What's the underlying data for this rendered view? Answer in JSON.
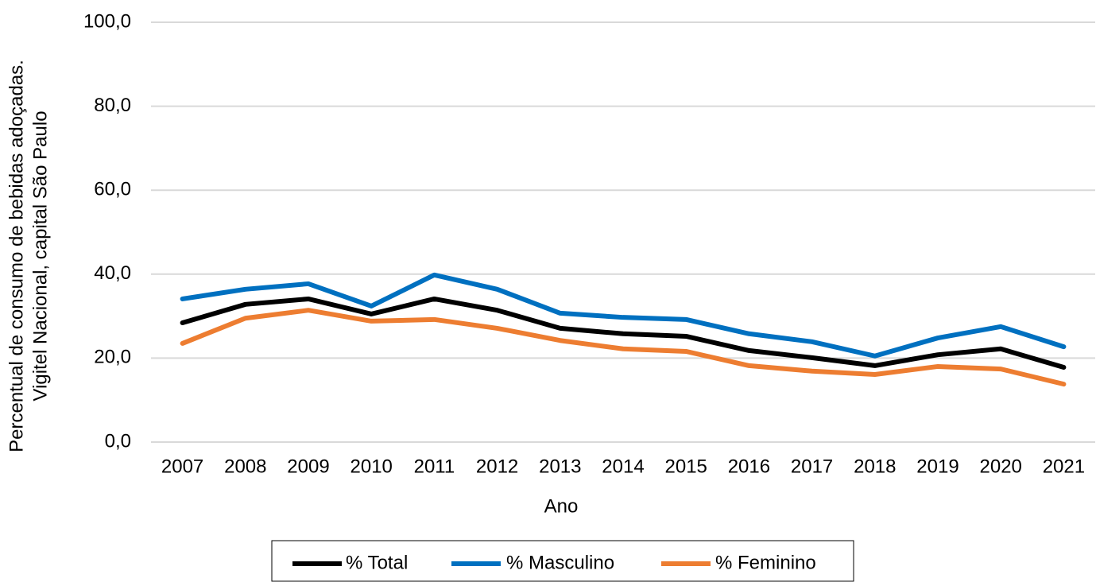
{
  "chart_data": {
    "type": "line",
    "xlabel": "Ano",
    "ylabel": [
      "Percentual de consumo de bebidas adoçadas.",
      "Vigitel Nacional, capital São Paulo"
    ],
    "categories": [
      "2007",
      "2008",
      "2009",
      "2010",
      "2011",
      "2012",
      "2013",
      "2014",
      "2015",
      "2016",
      "2017",
      "2018",
      "2019",
      "2020",
      "2021"
    ],
    "series": [
      {
        "name": "% Total",
        "color": "#000000",
        "values": [
          28.4,
          32.8,
          34.1,
          30.5,
          34.1,
          31.4,
          27.1,
          25.8,
          25.2,
          21.8,
          20.1,
          18.2,
          20.8,
          22.2,
          17.8
        ]
      },
      {
        "name": "% Masculino",
        "color": "#0070c0",
        "values": [
          34.1,
          36.4,
          37.7,
          32.4,
          39.8,
          36.4,
          30.7,
          29.7,
          29.2,
          25.8,
          23.9,
          20.5,
          24.8,
          27.5,
          22.7
        ]
      },
      {
        "name": "% Feminino",
        "color": "#ed7d31",
        "values": [
          23.5,
          29.5,
          31.4,
          28.8,
          29.2,
          27.1,
          24.2,
          22.2,
          21.6,
          18.2,
          16.9,
          16.1,
          18.0,
          17.4,
          13.8
        ]
      }
    ],
    "ylim": [
      0,
      100
    ],
    "yticks": [
      {
        "value": 0,
        "label": "0,0"
      },
      {
        "value": 20,
        "label": "20,0"
      },
      {
        "value": 40,
        "label": "40,0"
      },
      {
        "value": 60,
        "label": "60,0"
      },
      {
        "value": 80,
        "label": "80,0"
      },
      {
        "value": 100,
        "label": "100,0"
      }
    ],
    "grid": true,
    "legend": "bottom"
  }
}
